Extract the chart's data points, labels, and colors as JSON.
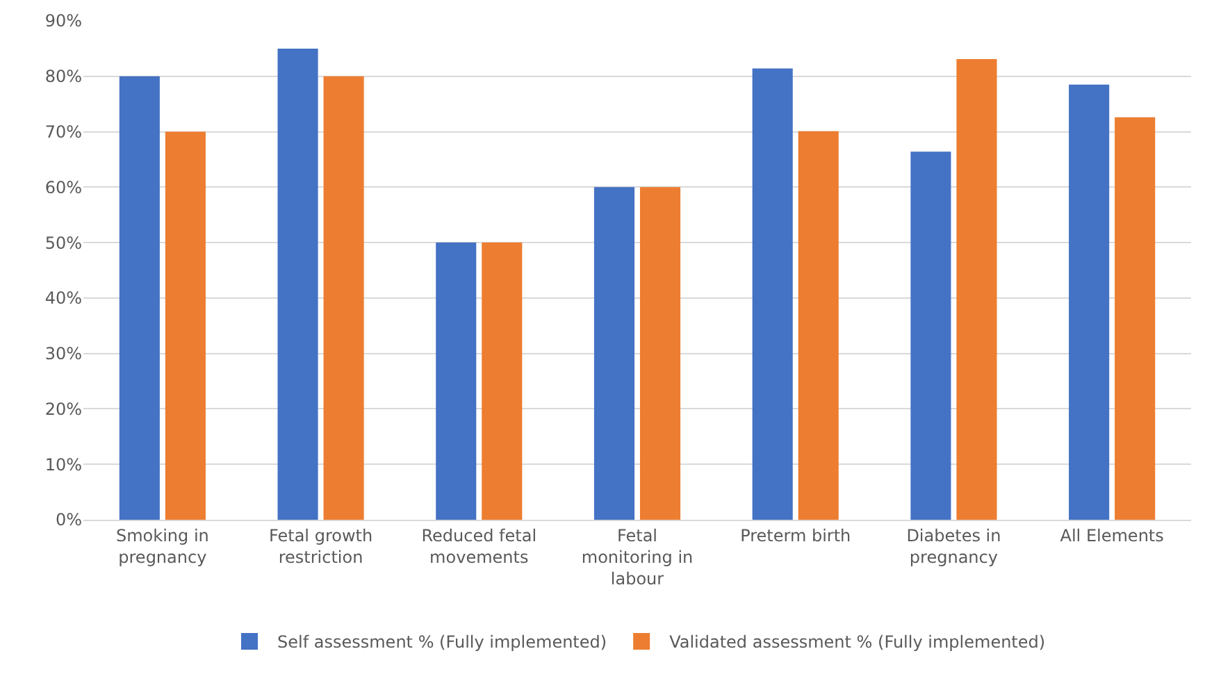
{
  "chart_data": {
    "type": "bar",
    "categories": [
      "Smoking in pregnancy",
      "Fetal growth restriction",
      "Reduced fetal movements",
      "Fetal monitoring in labour",
      "Preterm birth",
      "Diabetes in pregnancy",
      "All Elements"
    ],
    "series": [
      {
        "name": "Self assessment % (Fully implemented)",
        "color": "#4472c4",
        "values": [
          80,
          85,
          50,
          60,
          81.4,
          66.4,
          78.5
        ]
      },
      {
        "name": "Validated assessment % (Fully implemented)",
        "color": "#ed7d31",
        "values": [
          70,
          80,
          50,
          60,
          70.1,
          83.1,
          72.6
        ]
      }
    ],
    "ylim": [
      0,
      90
    ],
    "yticks": [
      {
        "value": 0,
        "label": "0%"
      },
      {
        "value": 10,
        "label": "10%"
      },
      {
        "value": 20,
        "label": "20%"
      },
      {
        "value": 30,
        "label": "30%"
      },
      {
        "value": 40,
        "label": "40%"
      },
      {
        "value": 50,
        "label": "50%"
      },
      {
        "value": 60,
        "label": "60%"
      },
      {
        "value": 70,
        "label": "70%"
      },
      {
        "value": 80,
        "label": "80%"
      },
      {
        "value": 90,
        "label": "90%"
      }
    ],
    "grid": "y",
    "legend": "bottom"
  }
}
